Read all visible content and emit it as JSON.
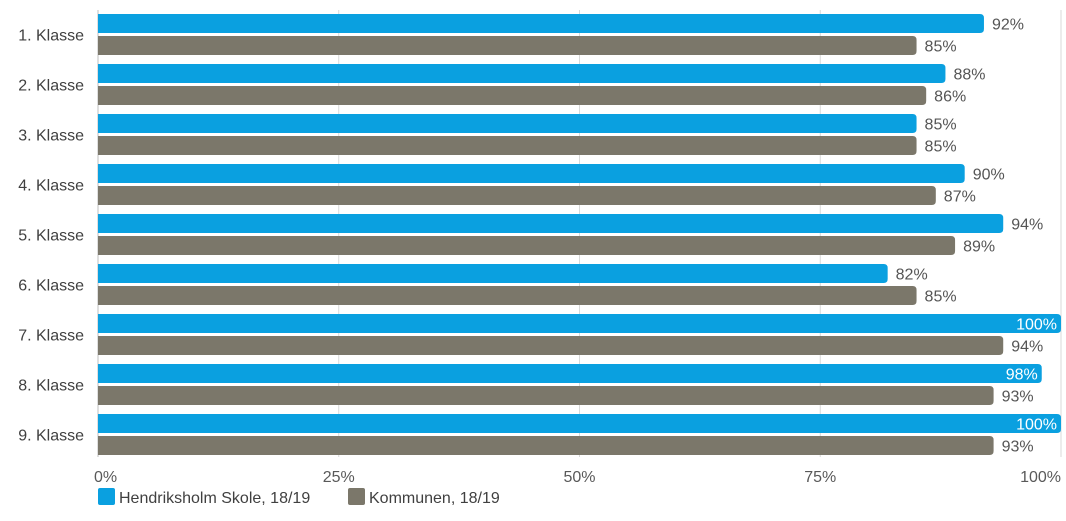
{
  "chart_data": {
    "type": "bar",
    "orientation": "horizontal",
    "categories": [
      "1. Klasse",
      "2. Klasse",
      "3. Klasse",
      "4. Klasse",
      "5. Klasse",
      "6. Klasse",
      "7. Klasse",
      "8. Klasse",
      "9. Klasse"
    ],
    "series": [
      {
        "name": "Hendriksholm Skole, 18/19",
        "values": [
          92,
          88,
          85,
          90,
          94,
          82,
          100,
          98,
          100
        ],
        "labels": [
          "92%",
          "88%",
          "85%",
          "90%",
          "94%",
          "82%",
          "100%",
          "98%",
          "100%"
        ],
        "color": "#0aa0e0"
      },
      {
        "name": "Kommunen, 18/19",
        "values": [
          85,
          86,
          85,
          87,
          89,
          85,
          94,
          93,
          93
        ],
        "labels": [
          "85%",
          "86%",
          "85%",
          "87%",
          "89%",
          "85%",
          "94%",
          "93%",
          "93%"
        ],
        "color": "#7b776a"
      }
    ],
    "xlim": [
      0,
      100
    ],
    "x_ticks": [
      0,
      25,
      50,
      75,
      100
    ],
    "x_tick_labels": [
      "0%",
      "25%",
      "50%",
      "75%",
      "100%"
    ],
    "grid": true,
    "legend_position": "bottom-left",
    "label_color_outside": "#555555",
    "label_color_inside": "#ffffff",
    "gridline_color": "#d9d9d9"
  }
}
